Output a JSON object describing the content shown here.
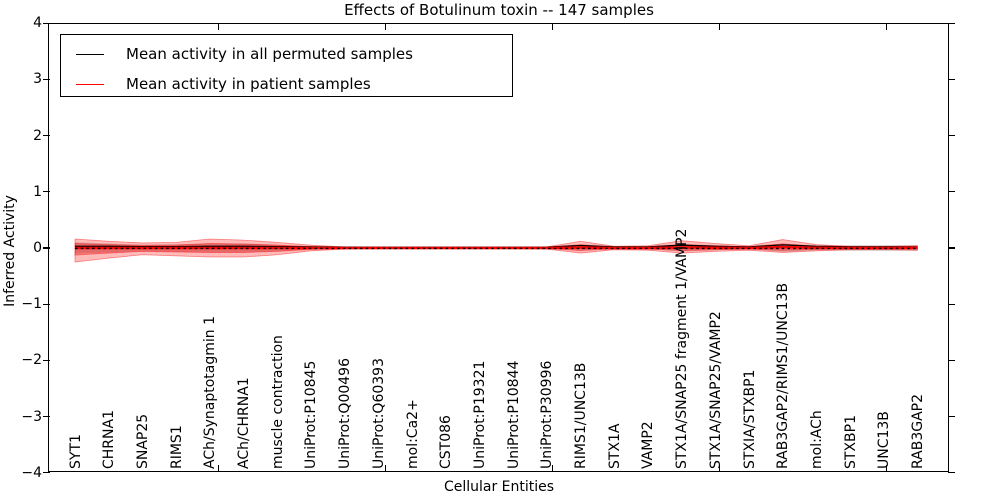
{
  "title": "Effects of Botulinum toxin -- 147 samples",
  "legend": {
    "items": [
      {
        "label": "Mean activity in all permuted samples",
        "color": "#000000"
      },
      {
        "label": "Mean activity in patient samples",
        "color": "#ff0000"
      }
    ]
  },
  "chart_data": {
    "type": "line",
    "title": "Effects of Botulinum toxin -- 147 samples",
    "xlabel": "Cellular Entities",
    "ylabel": "Inferred Activity",
    "ylim": [
      -4,
      4
    ],
    "grid": false,
    "legend_position": "upper left",
    "ytick_labels": [
      "4",
      "3",
      "2",
      "1",
      "0",
      "−1",
      "−2",
      "−3",
      "−4"
    ],
    "ytick_values": [
      4,
      3,
      2,
      1,
      0,
      -1,
      -2,
      -3,
      -4
    ],
    "categories": [
      "SYT1",
      "CHRNA1",
      "SNAP25",
      "RIMS1",
      "ACh/Synaptotagmin 1",
      "ACh/CHRNA1",
      "muscle contraction",
      "UniProt:P10845",
      "UniProt:Q00496",
      "UniProt:Q60393",
      "mol:Ca2+",
      "CST086",
      "UniProt:P19321",
      "UniProt:P10844",
      "UniProt:P30996",
      "RIMS1/UNC13B",
      "STX1A",
      "VAMP2",
      "STX1A/SNAP25 fragment 1/VAMP2",
      "STX1A/SNAP25/VAMP2",
      "STXIA/STXBP1",
      "RAB3GAP2/RIMS1/UNC13B",
      "mol:ACh",
      "STXBP1",
      "UNC13B",
      "RAB3GAP2"
    ],
    "series": [
      {
        "name": "Mean activity in all permuted samples",
        "color": "#000000",
        "style": "solid",
        "values": [
          0.03,
          0.03,
          0.025,
          0.025,
          0.03,
          0.03,
          0.025,
          0.02,
          0.015,
          0.012,
          0.012,
          0.012,
          0.012,
          0.012,
          0.015,
          0.045,
          0.02,
          0.02,
          0.05,
          0.03,
          0.02,
          0.055,
          0.03,
          0.02,
          0.02,
          0.02
        ]
      },
      {
        "name": "Mean activity in patient samples",
        "color": "#ff0000",
        "style": "solid",
        "values": [
          0,
          0,
          0,
          0,
          0,
          0,
          0,
          0,
          0,
          0,
          0,
          0,
          0,
          0,
          0,
          0.01,
          0,
          0,
          0.01,
          0.005,
          0,
          0.015,
          0.005,
          0,
          0,
          0.005
        ]
      }
    ],
    "bands": [
      {
        "name": "permuted-samples-spread",
        "color": "#aaaaaa",
        "opacity": 0.55,
        "upper": [
          0.1,
          0.08,
          0.06,
          0.07,
          0.08,
          0.08,
          0.06,
          0.03,
          0.01,
          0.008,
          0.008,
          0.008,
          0.008,
          0.008,
          0.01,
          0.05,
          0.015,
          0.02,
          0.06,
          0.04,
          0.02,
          0.07,
          0.04,
          0.05,
          0.05,
          0.05
        ],
        "lower": [
          -0.1,
          -0.08,
          -0.06,
          -0.07,
          -0.08,
          -0.08,
          -0.06,
          -0.03,
          -0.01,
          -0.008,
          -0.008,
          -0.008,
          -0.008,
          -0.008,
          -0.01,
          -0.05,
          -0.015,
          -0.02,
          -0.06,
          -0.04,
          -0.02,
          -0.07,
          -0.04,
          -0.05,
          -0.05,
          -0.05
        ]
      },
      {
        "name": "patient-samples-spread-outer",
        "color": "#ff0000",
        "opacity": 0.27,
        "upper": [
          0.16,
          0.12,
          0.09,
          0.1,
          0.16,
          0.14,
          0.1,
          0.05,
          0.02,
          0.015,
          0.015,
          0.015,
          0.015,
          0.015,
          0.02,
          0.12,
          0.03,
          0.04,
          0.13,
          0.08,
          0.04,
          0.15,
          0.06,
          0.03,
          0.03,
          0.04
        ],
        "lower": [
          -0.25,
          -0.18,
          -0.12,
          -0.14,
          -0.16,
          -0.16,
          -0.12,
          -0.05,
          -0.02,
          -0.015,
          -0.015,
          -0.015,
          -0.015,
          -0.015,
          -0.02,
          -0.09,
          -0.03,
          -0.04,
          -0.09,
          -0.06,
          -0.04,
          -0.08,
          -0.05,
          -0.03,
          -0.03,
          -0.04
        ]
      },
      {
        "name": "patient-samples-spread-inner",
        "color": "#ff0000",
        "opacity": 0.3,
        "upper": [
          0.08,
          0.06,
          0.045,
          0.05,
          0.08,
          0.07,
          0.05,
          0.025,
          0.01,
          0.008,
          0.008,
          0.008,
          0.008,
          0.008,
          0.01,
          0.06,
          0.015,
          0.02,
          0.065,
          0.04,
          0.02,
          0.075,
          0.03,
          0.015,
          0.015,
          0.02
        ],
        "lower": [
          -0.125,
          -0.09,
          -0.06,
          -0.07,
          -0.08,
          -0.08,
          -0.06,
          -0.025,
          -0.01,
          -0.008,
          -0.008,
          -0.008,
          -0.008,
          -0.008,
          -0.01,
          -0.045,
          -0.015,
          -0.02,
          -0.045,
          -0.03,
          -0.02,
          -0.04,
          -0.025,
          -0.015,
          -0.015,
          -0.02
        ]
      }
    ],
    "zero_line": {
      "value": 0,
      "style": "dotted",
      "color": "#000000"
    }
  }
}
